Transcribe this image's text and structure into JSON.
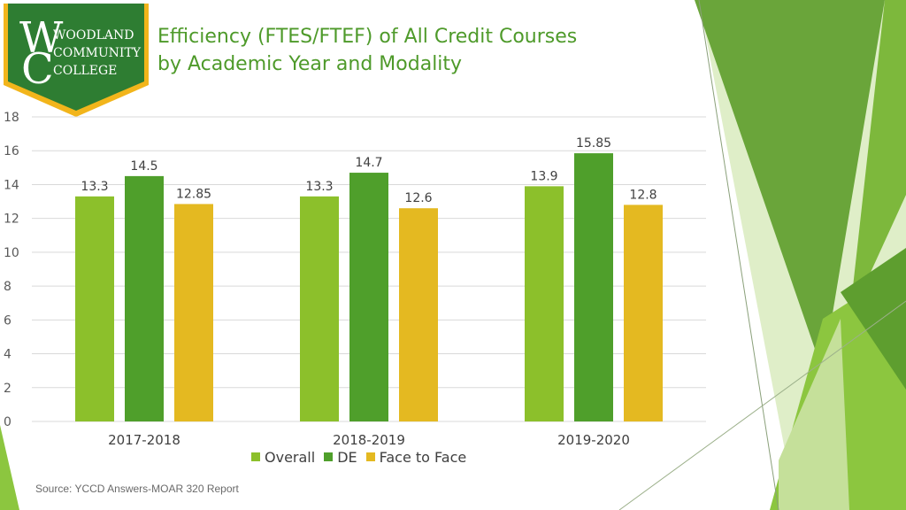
{
  "logo": {
    "text_lines": [
      "WOODLAND",
      "COMMUNITY",
      "COLLEGE"
    ]
  },
  "title_line1": "Efficiency (FTES/FTEF) of All Credit Courses",
  "title_line2": "by Academic Year and Modality",
  "source": "Source: YCCD Answers-MOAR 320 Report",
  "colors": {
    "overall": "#8cc02b",
    "de": "#4f9f2b",
    "face_to_face": "#e4b921",
    "title": "#4e9a2a",
    "logo_green": "#2e7d32",
    "logo_border": "#f2b51b"
  },
  "chart_data": {
    "type": "bar",
    "categories": [
      "2017-2018",
      "2018-2019",
      "2019-2020"
    ],
    "series": [
      {
        "name": "Overall",
        "values": [
          13.3,
          13.3,
          13.9
        ],
        "labels": [
          "13.3",
          "13.3",
          "13.9"
        ]
      },
      {
        "name": "DE",
        "values": [
          14.5,
          14.7,
          15.85
        ],
        "labels": [
          "14.5",
          "14.7",
          "15.85"
        ]
      },
      {
        "name": "Face to Face",
        "values": [
          12.85,
          12.6,
          12.8
        ],
        "labels": [
          "12.85",
          "12.6",
          "12.8"
        ]
      }
    ],
    "title": "Efficiency (FTES/FTEF) of All Credit Courses by Academic Year and Modality",
    "xlabel": "",
    "ylabel": "",
    "ylim": [
      0,
      18
    ],
    "yticks": [
      "0",
      "2",
      "4",
      "6",
      "8",
      "10",
      "12",
      "14",
      "16",
      "18"
    ],
    "grid": true,
    "legend_position": "bottom"
  }
}
